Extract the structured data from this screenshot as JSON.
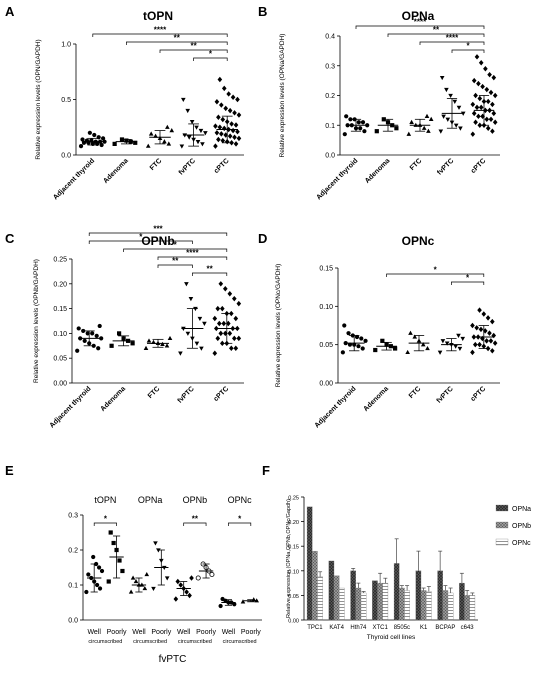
{
  "chart_data": [
    {
      "panel": "A",
      "type": "scatter",
      "title": "tOPN",
      "ylabel": "Relative expression levels (OPN/GAPDH)",
      "categories": [
        "Adjacent thyroid",
        "Adenoma",
        "FTC",
        "fvPTC",
        "cPTC"
      ],
      "ylim": [
        0,
        1.0
      ],
      "yticks": [
        "0.0",
        "0.5",
        "1.0"
      ],
      "ytick_values": [
        0,
        0.5,
        1.0
      ],
      "markers": [
        "circle",
        "square",
        "triangle",
        "triangle-down",
        "diamond"
      ],
      "groups": [
        {
          "category": "Adjacent thyroid",
          "mean": 0.12,
          "sd": 0.03,
          "points": [
            0.08,
            0.09,
            0.1,
            0.1,
            0.11,
            0.11,
            0.12,
            0.12,
            0.12,
            0.13,
            0.13,
            0.14,
            0.15,
            0.16,
            0.18,
            0.2
          ]
        },
        {
          "category": "Adenoma",
          "mean": 0.12,
          "sd": 0.02,
          "points": [
            0.1,
            0.11,
            0.12,
            0.13,
            0.14
          ]
        },
        {
          "category": "FTC",
          "mean": 0.16,
          "sd": 0.06,
          "points": [
            0.08,
            0.1,
            0.12,
            0.15,
            0.17,
            0.19,
            0.22,
            0.25
          ]
        },
        {
          "category": "fvPTC",
          "mean": 0.18,
          "sd": 0.1,
          "points": [
            0.08,
            0.1,
            0.12,
            0.14,
            0.16,
            0.18,
            0.2,
            0.22,
            0.25,
            0.3,
            0.4,
            0.5
          ]
        },
        {
          "category": "cPTC",
          "mean": 0.23,
          "sd": 0.12,
          "points": [
            0.08,
            0.1,
            0.11,
            0.12,
            0.13,
            0.14,
            0.15,
            0.16,
            0.17,
            0.18,
            0.19,
            0.2,
            0.21,
            0.22,
            0.23,
            0.24,
            0.25,
            0.26,
            0.27,
            0.28,
            0.3,
            0.32,
            0.34,
            0.36,
            0.38,
            0.4,
            0.42,
            0.45,
            0.48,
            0.5,
            0.52,
            0.55,
            0.6,
            0.68
          ]
        }
      ],
      "brackets": [
        {
          "from": 3,
          "to": 4,
          "label": "*"
        },
        {
          "from": 2,
          "to": 4,
          "label": "**"
        },
        {
          "from": 1,
          "to": 4,
          "label": "**"
        },
        {
          "from": 0,
          "to": 4,
          "label": "****"
        }
      ]
    },
    {
      "panel": "B",
      "type": "scatter",
      "title": "OPNa",
      "ylabel": "Relative expression levels (OPNa/GAPDH)",
      "categories": [
        "Adjacent thyroid",
        "Adenoma",
        "FTC",
        "fvPTC",
        "cPTC"
      ],
      "ylim": [
        0,
        0.4
      ],
      "yticks": [
        "0.0",
        "0.1",
        "0.2",
        "0.3",
        "0.4"
      ],
      "ytick_values": [
        0,
        0.1,
        0.2,
        0.3,
        0.4
      ],
      "markers": [
        "circle",
        "square",
        "triangle",
        "triangle-down",
        "diamond"
      ],
      "groups": [
        {
          "category": "Adjacent thyroid",
          "mean": 0.1,
          "sd": 0.02,
          "points": [
            0.07,
            0.08,
            0.09,
            0.09,
            0.1,
            0.1,
            0.1,
            0.11,
            0.11,
            0.12,
            0.12,
            0.13
          ]
        },
        {
          "category": "Adenoma",
          "mean": 0.1,
          "sd": 0.02,
          "points": [
            0.08,
            0.09,
            0.1,
            0.11,
            0.12
          ]
        },
        {
          "category": "FTC",
          "mean": 0.1,
          "sd": 0.02,
          "points": [
            0.07,
            0.08,
            0.09,
            0.1,
            0.1,
            0.11,
            0.12,
            0.13
          ]
        },
        {
          "category": "fvPTC",
          "mean": 0.14,
          "sd": 0.05,
          "points": [
            0.08,
            0.09,
            0.1,
            0.11,
            0.12,
            0.13,
            0.14,
            0.16,
            0.18,
            0.2,
            0.22,
            0.26
          ]
        },
        {
          "category": "cPTC",
          "mean": 0.15,
          "sd": 0.05,
          "points": [
            0.07,
            0.08,
            0.09,
            0.1,
            0.1,
            0.11,
            0.11,
            0.12,
            0.12,
            0.13,
            0.13,
            0.14,
            0.14,
            0.15,
            0.15,
            0.16,
            0.16,
            0.17,
            0.17,
            0.18,
            0.18,
            0.19,
            0.2,
            0.2,
            0.21,
            0.22,
            0.23,
            0.24,
            0.25,
            0.26,
            0.27,
            0.29,
            0.31,
            0.33
          ]
        }
      ],
      "brackets": [
        {
          "from": 3,
          "to": 4,
          "label": "*"
        },
        {
          "from": 2,
          "to": 4,
          "label": "****"
        },
        {
          "from": 1,
          "to": 4,
          "label": "**"
        },
        {
          "from": 0,
          "to": 4,
          "label": "****"
        }
      ]
    },
    {
      "panel": "C",
      "type": "scatter",
      "title": "OPNb",
      "ylabel": "Relative expression levels (OPNb/GAPDH)",
      "categories": [
        "Adjacent thyroid",
        "Adenoma",
        "FTC",
        "fvPTC",
        "cPTC"
      ],
      "ylim": [
        0,
        0.25
      ],
      "yticks": [
        "0.00",
        "0.05",
        "0.10",
        "0.15",
        "0.20",
        "0.25"
      ],
      "ytick_values": [
        0,
        0.05,
        0.1,
        0.15,
        0.2,
        0.25
      ],
      "markers": [
        "circle",
        "square",
        "triangle",
        "triangle-down",
        "diamond"
      ],
      "groups": [
        {
          "category": "Adjacent thyroid",
          "mean": 0.09,
          "sd": 0.015,
          "points": [
            0.065,
            0.07,
            0.075,
            0.08,
            0.085,
            0.09,
            0.09,
            0.095,
            0.1,
            0.1,
            0.105,
            0.11,
            0.115
          ]
        },
        {
          "category": "Adenoma",
          "mean": 0.085,
          "sd": 0.01,
          "points": [
            0.075,
            0.08,
            0.085,
            0.09,
            0.1
          ]
        },
        {
          "category": "FTC",
          "mean": 0.08,
          "sd": 0.008,
          "points": [
            0.07,
            0.075,
            0.078,
            0.08,
            0.082,
            0.085,
            0.09
          ]
        },
        {
          "category": "fvPTC",
          "mean": 0.11,
          "sd": 0.04,
          "points": [
            0.06,
            0.07,
            0.08,
            0.09,
            0.1,
            0.11,
            0.12,
            0.13,
            0.15,
            0.17,
            0.2
          ]
        },
        {
          "category": "cPTC",
          "mean": 0.11,
          "sd": 0.03,
          "points": [
            0.06,
            0.07,
            0.07,
            0.08,
            0.08,
            0.09,
            0.09,
            0.09,
            0.1,
            0.1,
            0.1,
            0.11,
            0.11,
            0.11,
            0.12,
            0.12,
            0.12,
            0.13,
            0.13,
            0.14,
            0.14,
            0.15,
            0.15,
            0.16,
            0.17,
            0.18,
            0.19,
            0.2
          ]
        }
      ],
      "brackets": [
        {
          "from": 3,
          "to": 4,
          "label": "**"
        },
        {
          "from": 2,
          "to": 4,
          "label": "****"
        },
        {
          "from": 1,
          "to": 4,
          "label": "*"
        },
        {
          "from": 0,
          "to": 4,
          "label": "***"
        },
        {
          "from": 0,
          "to": 3,
          "label": "*"
        },
        {
          "from": 2,
          "to": 3,
          "label": "**"
        }
      ]
    },
    {
      "panel": "D",
      "type": "scatter",
      "title": "OPNc",
      "ylabel": "Relative expression levels (OPNc/GAPDH)",
      "categories": [
        "Adjacent thyroid",
        "Adenoma",
        "FTC",
        "fvPTC",
        "cPTC"
      ],
      "ylim": [
        0,
        0.15
      ],
      "yticks": [
        "0.00",
        "0.05",
        "0.10",
        "0.15"
      ],
      "ytick_values": [
        0,
        0.05,
        0.1,
        0.15
      ],
      "markers": [
        "circle",
        "square",
        "triangle",
        "triangle-down",
        "diamond"
      ],
      "groups": [
        {
          "category": "Adjacent thyroid",
          "mean": 0.052,
          "sd": 0.01,
          "points": [
            0.04,
            0.045,
            0.048,
            0.05,
            0.05,
            0.052,
            0.055,
            0.058,
            0.06,
            0.062,
            0.065,
            0.075
          ]
        },
        {
          "category": "Adenoma",
          "mean": 0.048,
          "sd": 0.005,
          "points": [
            0.043,
            0.045,
            0.048,
            0.05,
            0.055
          ]
        },
        {
          "category": "FTC",
          "mean": 0.052,
          "sd": 0.01,
          "points": [
            0.04,
            0.045,
            0.05,
            0.055,
            0.06,
            0.065
          ]
        },
        {
          "category": "fvPTC",
          "mean": 0.05,
          "sd": 0.008,
          "points": [
            0.04,
            0.045,
            0.048,
            0.05,
            0.052,
            0.055,
            0.058,
            0.062
          ]
        },
        {
          "category": "cPTC",
          "mean": 0.06,
          "sd": 0.015,
          "points": [
            0.04,
            0.042,
            0.045,
            0.048,
            0.05,
            0.05,
            0.052,
            0.055,
            0.055,
            0.058,
            0.06,
            0.06,
            0.062,
            0.065,
            0.068,
            0.07,
            0.072,
            0.075,
            0.08,
            0.085,
            0.09,
            0.095
          ]
        }
      ],
      "brackets": [
        {
          "from": 3,
          "to": 4,
          "label": "*"
        },
        {
          "from": 1,
          "to": 4,
          "label": "*"
        }
      ]
    },
    {
      "panel": "E",
      "type": "scatter",
      "ylabel": "Relative expression\n(tOPN,OPNa,OPNb,OPNc/Gapdh)",
      "xlabel": "fvPTC",
      "ylim": [
        0,
        0.3
      ],
      "yticks": [
        "0.0",
        "0.1",
        "0.2",
        "0.3"
      ],
      "ytick_values": [
        0,
        0.1,
        0.2,
        0.3
      ],
      "isoforms": [
        "tOPN",
        "OPNa",
        "OPNb",
        "OPNc"
      ],
      "tick_labels": [
        "Well",
        "Poorly",
        "Well",
        "Poorly",
        "Well",
        "Poorly",
        "Well",
        "Poorly"
      ],
      "sub_labels": [
        "circumscribed",
        "circumscribed",
        "circumscribed",
        "circumscribed"
      ],
      "groups": [
        {
          "isoform": "tOPN",
          "type": "Well",
          "marker": "circle",
          "mean": 0.12,
          "sd": 0.04,
          "points": [
            0.08,
            0.09,
            0.1,
            0.11,
            0.12,
            0.13,
            0.14,
            0.15,
            0.16,
            0.18
          ]
        },
        {
          "isoform": "tOPN",
          "type": "Poorly",
          "marker": "square",
          "mean": 0.18,
          "sd": 0.06,
          "points": [
            0.11,
            0.14,
            0.17,
            0.2,
            0.22,
            0.25
          ]
        },
        {
          "isoform": "OPNa",
          "type": "Well",
          "marker": "triangle",
          "mean": 0.1,
          "sd": 0.02,
          "points": [
            0.08,
            0.09,
            0.1,
            0.1,
            0.11,
            0.12,
            0.13
          ]
        },
        {
          "isoform": "OPNa",
          "type": "Poorly",
          "marker": "triangle-down",
          "mean": 0.15,
          "sd": 0.05,
          "points": [
            0.09,
            0.12,
            0.15,
            0.17,
            0.2,
            0.22
          ]
        },
        {
          "isoform": "OPNb",
          "type": "Well",
          "marker": "diamond",
          "mean": 0.09,
          "sd": 0.02,
          "points": [
            0.06,
            0.07,
            0.08,
            0.09,
            0.1,
            0.11,
            0.12
          ]
        },
        {
          "isoform": "OPNb",
          "type": "Poorly",
          "marker": "open-circle",
          "mean": 0.14,
          "sd": 0.02,
          "points": [
            0.12,
            0.13,
            0.14,
            0.15,
            0.16
          ]
        },
        {
          "isoform": "OPNc",
          "type": "Well",
          "marker": "circle",
          "mean": 0.05,
          "sd": 0.008,
          "points": [
            0.04,
            0.045,
            0.05,
            0.05,
            0.055,
            0.06
          ]
        },
        {
          "isoform": "OPNc",
          "type": "Poorly",
          "marker": "triangle",
          "mean": 0.055,
          "sd": 0.003,
          "points": [
            0.052,
            0.055,
            0.058
          ]
        }
      ],
      "brackets": [
        {
          "from": 0,
          "to": 1,
          "label": "*"
        },
        {
          "from": 4,
          "to": 5,
          "label": "**"
        },
        {
          "from": 6,
          "to": 7,
          "label": "*"
        }
      ]
    },
    {
      "panel": "F",
      "type": "bar",
      "ylabel": "Relative expression (OPNa,OPNb,OPNc/Gapdh)",
      "xlabel": "Thyroid cell lines",
      "categories": [
        "TPC1",
        "KAT4",
        "Hth74",
        "XTC1",
        "8505c",
        "K1",
        "BCPAP",
        "c643"
      ],
      "ylim": [
        0,
        0.25
      ],
      "yticks": [
        "0.00",
        "0.05",
        "0.10",
        "0.15",
        "0.20",
        "0.25"
      ],
      "ytick_values": [
        0,
        0.05,
        0.1,
        0.15,
        0.2,
        0.25
      ],
      "legend_position": "top-right",
      "series": [
        {
          "name": "OPNa",
          "values": [
            0.23,
            0.12,
            0.1,
            0.08,
            0.115,
            0.1,
            0.1,
            0.075
          ],
          "errors": [
            0.0,
            0.0,
            0.005,
            0.0,
            0.05,
            0.04,
            0.04,
            0.02
          ],
          "color": "#555555"
        },
        {
          "name": "OPNb",
          "values": [
            0.14,
            0.09,
            0.065,
            0.075,
            0.065,
            0.06,
            0.06,
            0.05
          ],
          "errors": [
            0.0,
            0.0,
            0.01,
            0.02,
            0.005,
            0.005,
            0.01,
            0.01
          ],
          "color": "#8c8c8c"
        },
        {
          "name": "OPNc",
          "values": [
            0.088,
            0.065,
            0.055,
            0.075,
            0.06,
            0.058,
            0.055,
            0.05
          ],
          "errors": [
            0.01,
            0.0,
            0.003,
            0.01,
            0.01,
            0.01,
            0.01,
            0.005
          ],
          "color": "#cfcfcf"
        }
      ]
    }
  ]
}
